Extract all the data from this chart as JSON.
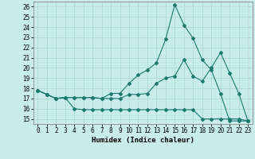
{
  "xlabel": "Humidex (Indice chaleur)",
  "bg_color": "#c8ecea",
  "grid_color": "#b0d8d4",
  "line_color": "#1a7a6e",
  "xlim": [
    -0.5,
    23.5
  ],
  "ylim": [
    14.5,
    26.5
  ],
  "xticks": [
    0,
    1,
    2,
    3,
    4,
    5,
    6,
    7,
    8,
    9,
    10,
    11,
    12,
    13,
    14,
    15,
    16,
    17,
    18,
    19,
    20,
    21,
    22,
    23
  ],
  "yticks": [
    15,
    16,
    17,
    18,
    19,
    20,
    21,
    22,
    23,
    24,
    25,
    26
  ],
  "line1_x": [
    0,
    1,
    2,
    3,
    4,
    5,
    6,
    7,
    8,
    9,
    10,
    11,
    12,
    13,
    14,
    15,
    16,
    17,
    18,
    19,
    20,
    21,
    22,
    23
  ],
  "line1_y": [
    17.8,
    17.4,
    17.0,
    17.1,
    16.0,
    15.9,
    15.9,
    15.9,
    15.9,
    15.9,
    15.9,
    15.9,
    15.9,
    15.9,
    15.9,
    15.9,
    15.9,
    15.9,
    15.0,
    15.0,
    15.0,
    15.0,
    15.0,
    14.8
  ],
  "line2_x": [
    0,
    1,
    2,
    3,
    4,
    5,
    6,
    7,
    8,
    9,
    10,
    11,
    12,
    13,
    14,
    15,
    16,
    17,
    18,
    19,
    20,
    21,
    22,
    23
  ],
  "line2_y": [
    17.8,
    17.4,
    17.0,
    17.1,
    17.1,
    17.1,
    17.1,
    17.0,
    17.0,
    17.0,
    17.4,
    17.4,
    17.5,
    18.5,
    19.0,
    19.2,
    20.8,
    19.2,
    18.7,
    20.0,
    21.5,
    19.5,
    17.5,
    14.8
  ],
  "line3_x": [
    0,
    1,
    2,
    3,
    4,
    5,
    6,
    7,
    8,
    9,
    10,
    11,
    12,
    13,
    14,
    15,
    16,
    17,
    18,
    19,
    20,
    21,
    22,
    23
  ],
  "line3_y": [
    17.8,
    17.4,
    17.0,
    17.1,
    17.1,
    17.1,
    17.1,
    17.0,
    17.5,
    17.5,
    18.5,
    19.3,
    19.8,
    20.5,
    22.8,
    26.2,
    24.2,
    22.9,
    20.8,
    19.8,
    17.5,
    14.8,
    14.8,
    14.8
  ]
}
